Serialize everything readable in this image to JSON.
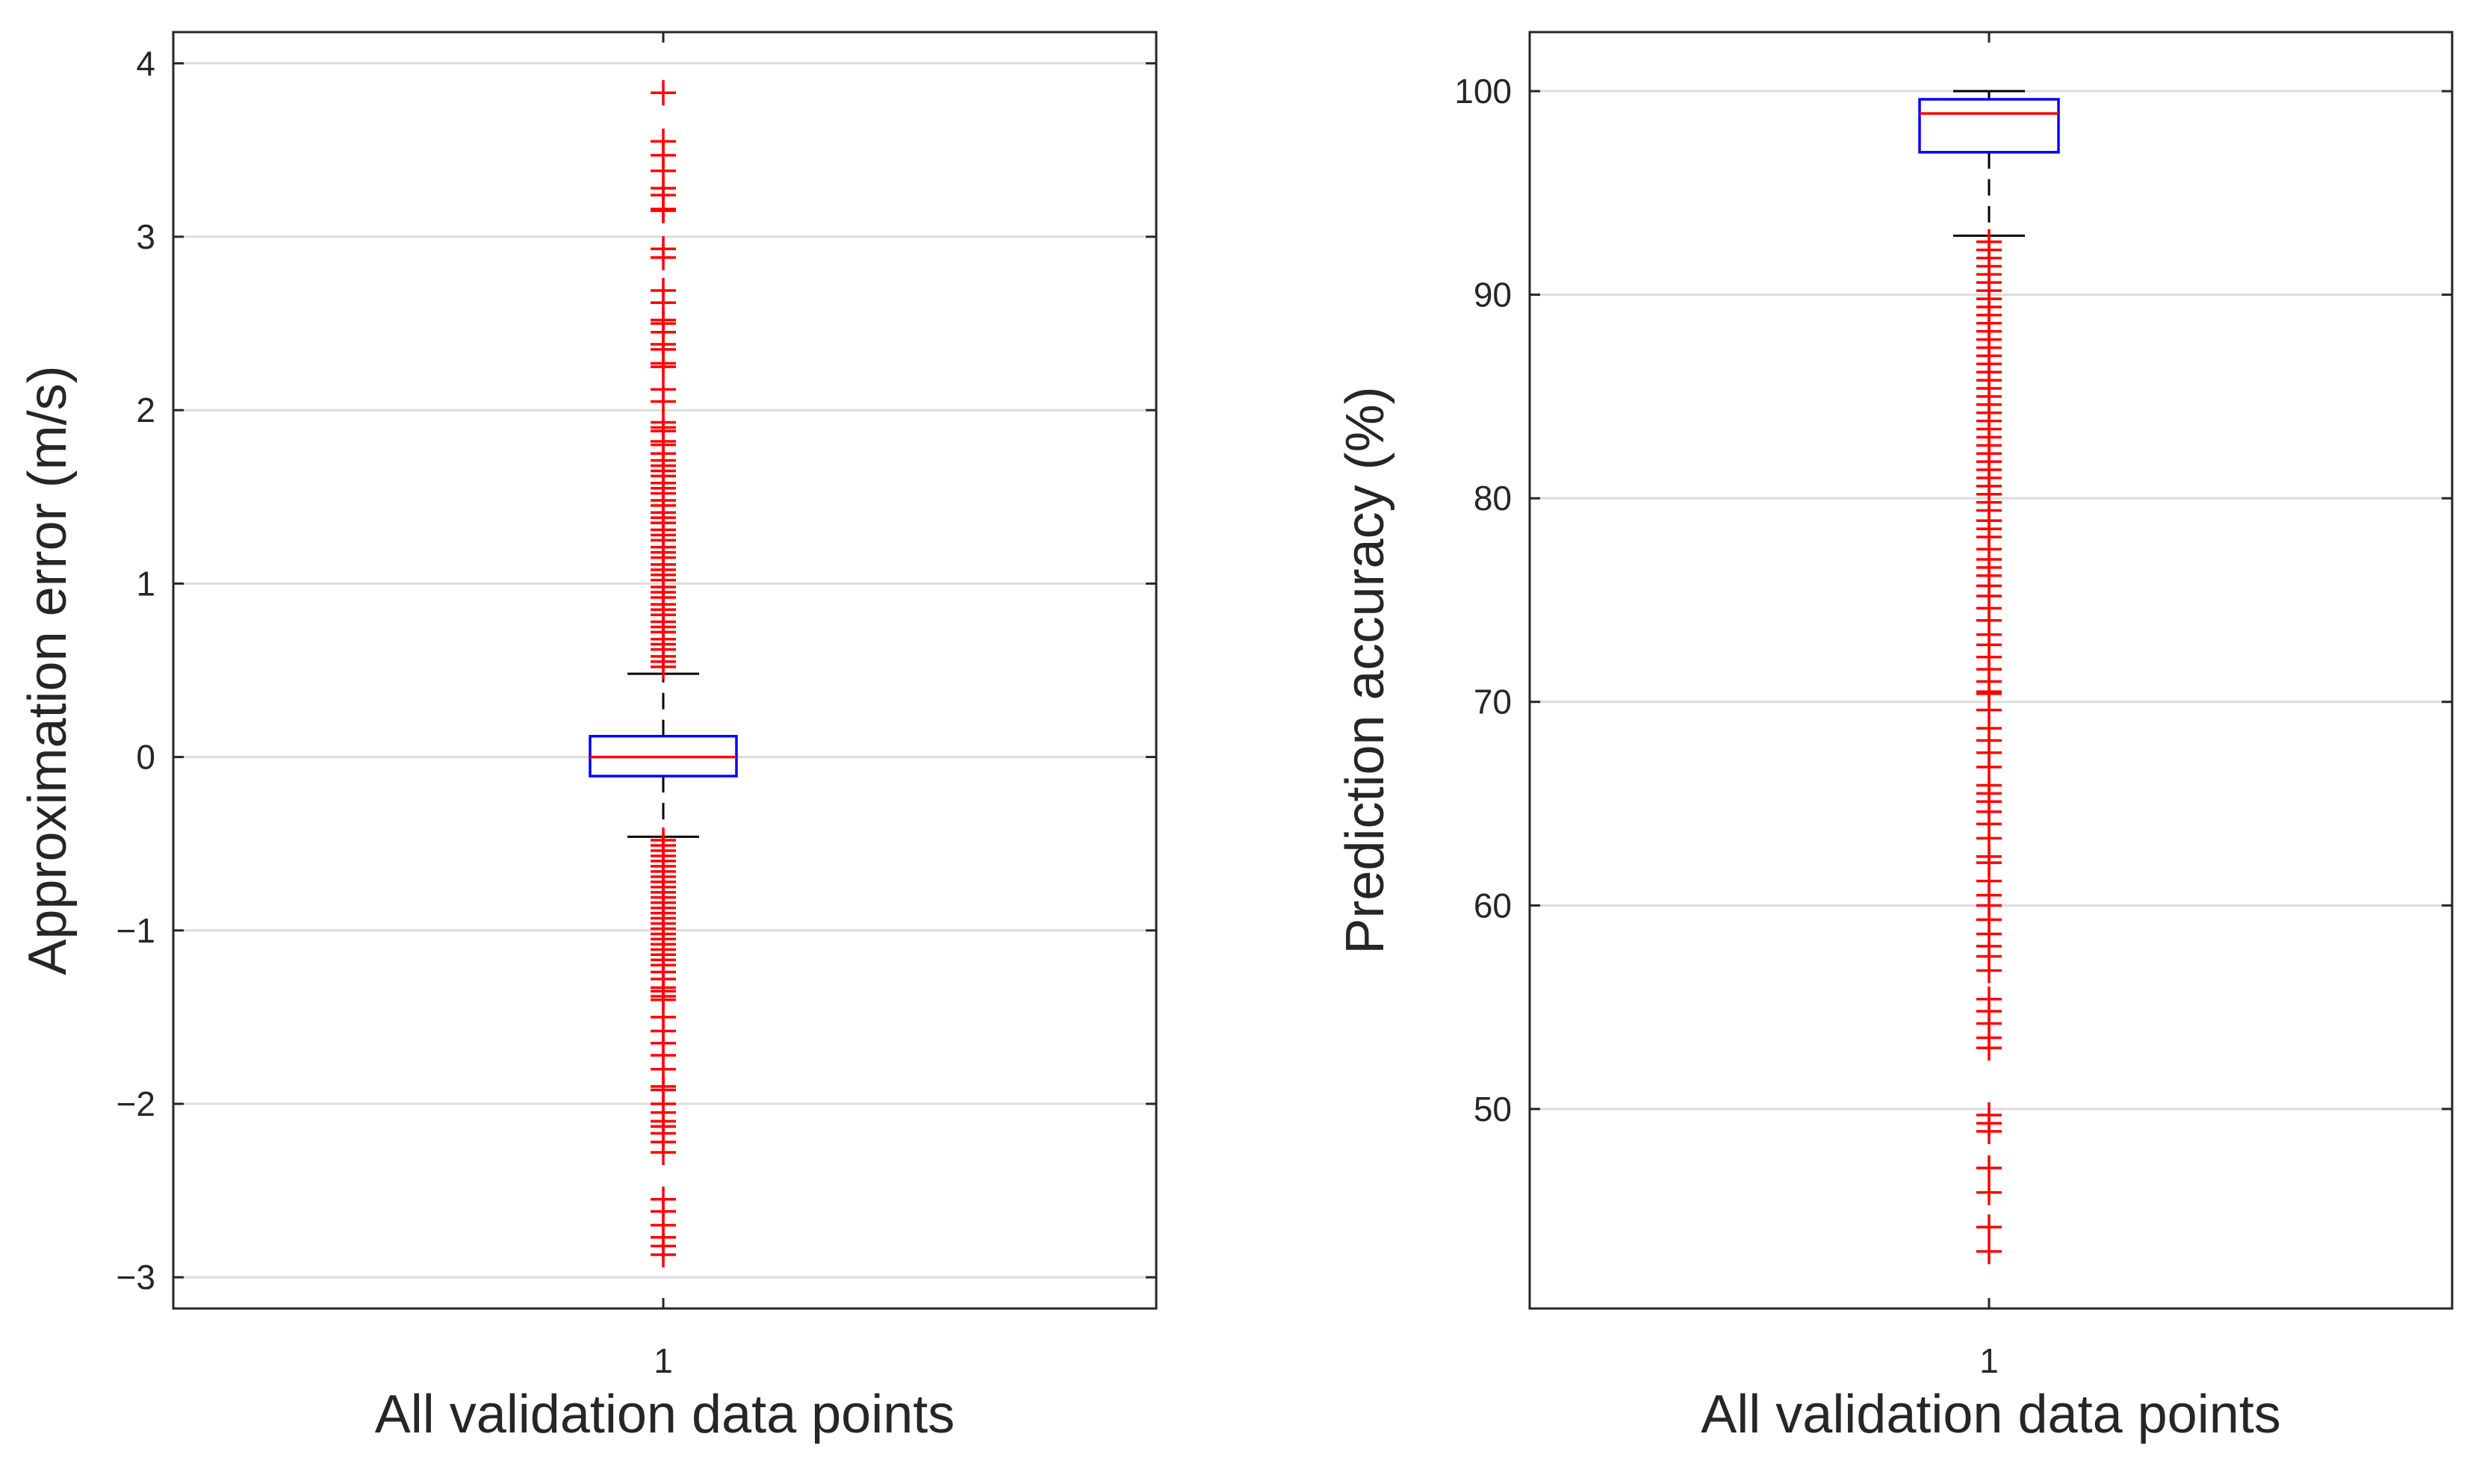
{
  "chart_data": [
    {
      "type": "box",
      "title": "",
      "xlabel": "All validation data points",
      "ylabel": "Approximation error (m/s)",
      "categories": [
        "1"
      ],
      "ylim": [
        -3.18,
        4.18
      ],
      "yticks": [
        -3,
        -2,
        -1,
        0,
        1,
        2,
        3,
        4
      ],
      "ytick_labels": [
        "−3",
        "−2",
        "−1",
        "0",
        "1",
        "2",
        "3",
        "4"
      ],
      "grid": true,
      "box": {
        "q1": -0.11,
        "median": 0.0,
        "q3": 0.12,
        "whisker_low": -0.46,
        "whisker_high": 0.48
      },
      "outliers": [
        3.83,
        3.55,
        3.47,
        3.38,
        3.28,
        3.24,
        3.16,
        3.15,
        2.93,
        2.88,
        2.69,
        2.62,
        2.52,
        2.5,
        2.45,
        2.38,
        2.35,
        2.27,
        2.25,
        2.12,
        2.05,
        1.93,
        1.9,
        1.88,
        1.82,
        1.8,
        1.75,
        1.71,
        1.68,
        1.65,
        1.62,
        1.58,
        1.55,
        1.52,
        1.48,
        1.45,
        1.41,
        1.38,
        1.35,
        1.31,
        1.28,
        1.25,
        1.21,
        1.18,
        1.15,
        1.11,
        1.08,
        1.05,
        1.02,
        0.98,
        0.95,
        0.92,
        0.88,
        0.85,
        0.82,
        0.78,
        0.75,
        0.72,
        0.68,
        0.65,
        0.62,
        0.58,
        0.55,
        0.52,
        -0.48,
        -0.51,
        -0.54,
        -0.57,
        -0.6,
        -0.63,
        -0.66,
        -0.69,
        -0.72,
        -0.75,
        -0.78,
        -0.81,
        -0.84,
        -0.87,
        -0.9,
        -0.93,
        -0.96,
        -0.99,
        -1.02,
        -1.05,
        -1.08,
        -1.11,
        -1.14,
        -1.17,
        -1.2,
        -1.24,
        -1.28,
        -1.33,
        -1.35,
        -1.38,
        -1.4,
        -1.5,
        -1.58,
        -1.65,
        -1.72,
        -1.8,
        -1.9,
        -1.92,
        -2.0,
        -2.05,
        -2.1,
        -2.13,
        -2.17,
        -2.22,
        -2.28,
        -2.55,
        -2.62,
        -2.7,
        -2.77,
        -2.82,
        -2.87
      ]
    },
    {
      "type": "box",
      "title": "",
      "xlabel": "All validation data points",
      "ylabel": "Prediction accuracy (%)",
      "categories": [
        "1"
      ],
      "ylim": [
        40.2,
        102.9
      ],
      "yticks": [
        50,
        60,
        70,
        80,
        90,
        100
      ],
      "ytick_labels": [
        "50",
        "60",
        "70",
        "80",
        "90",
        "100"
      ],
      "grid": true,
      "box": {
        "q1": 97.0,
        "median": 98.9,
        "q3": 99.6,
        "whisker_low": 92.9,
        "whisker_high": 100.0
      },
      "outliers": [
        92.6,
        92.2,
        91.8,
        91.4,
        91.0,
        90.6,
        90.2,
        89.8,
        89.4,
        89.0,
        88.6,
        88.2,
        87.8,
        87.4,
        87.0,
        86.6,
        86.2,
        85.8,
        85.4,
        85.0,
        84.6,
        84.2,
        83.8,
        83.4,
        83.0,
        82.6,
        82.2,
        81.8,
        81.4,
        81.0,
        80.6,
        80.2,
        79.8,
        79.4,
        78.9,
        78.5,
        78.1,
        77.5,
        77.0,
        76.6,
        76.2,
        75.7,
        75.2,
        74.6,
        74.0,
        73.3,
        72.8,
        72.2,
        71.6,
        71.0,
        70.5,
        70.4,
        69.6,
        68.7,
        68.1,
        67.5,
        66.8,
        65.9,
        65.5,
        65.1,
        64.6,
        64.0,
        63.3,
        62.4,
        62.1,
        61.2,
        60.5,
        60.0,
        59.3,
        58.6,
        58.0,
        57.5,
        56.8,
        55.4,
        54.8,
        54.2,
        53.5,
        53.0,
        49.7,
        49.3,
        48.9,
        47.1,
        45.9,
        44.2,
        43.0
      ]
    }
  ]
}
